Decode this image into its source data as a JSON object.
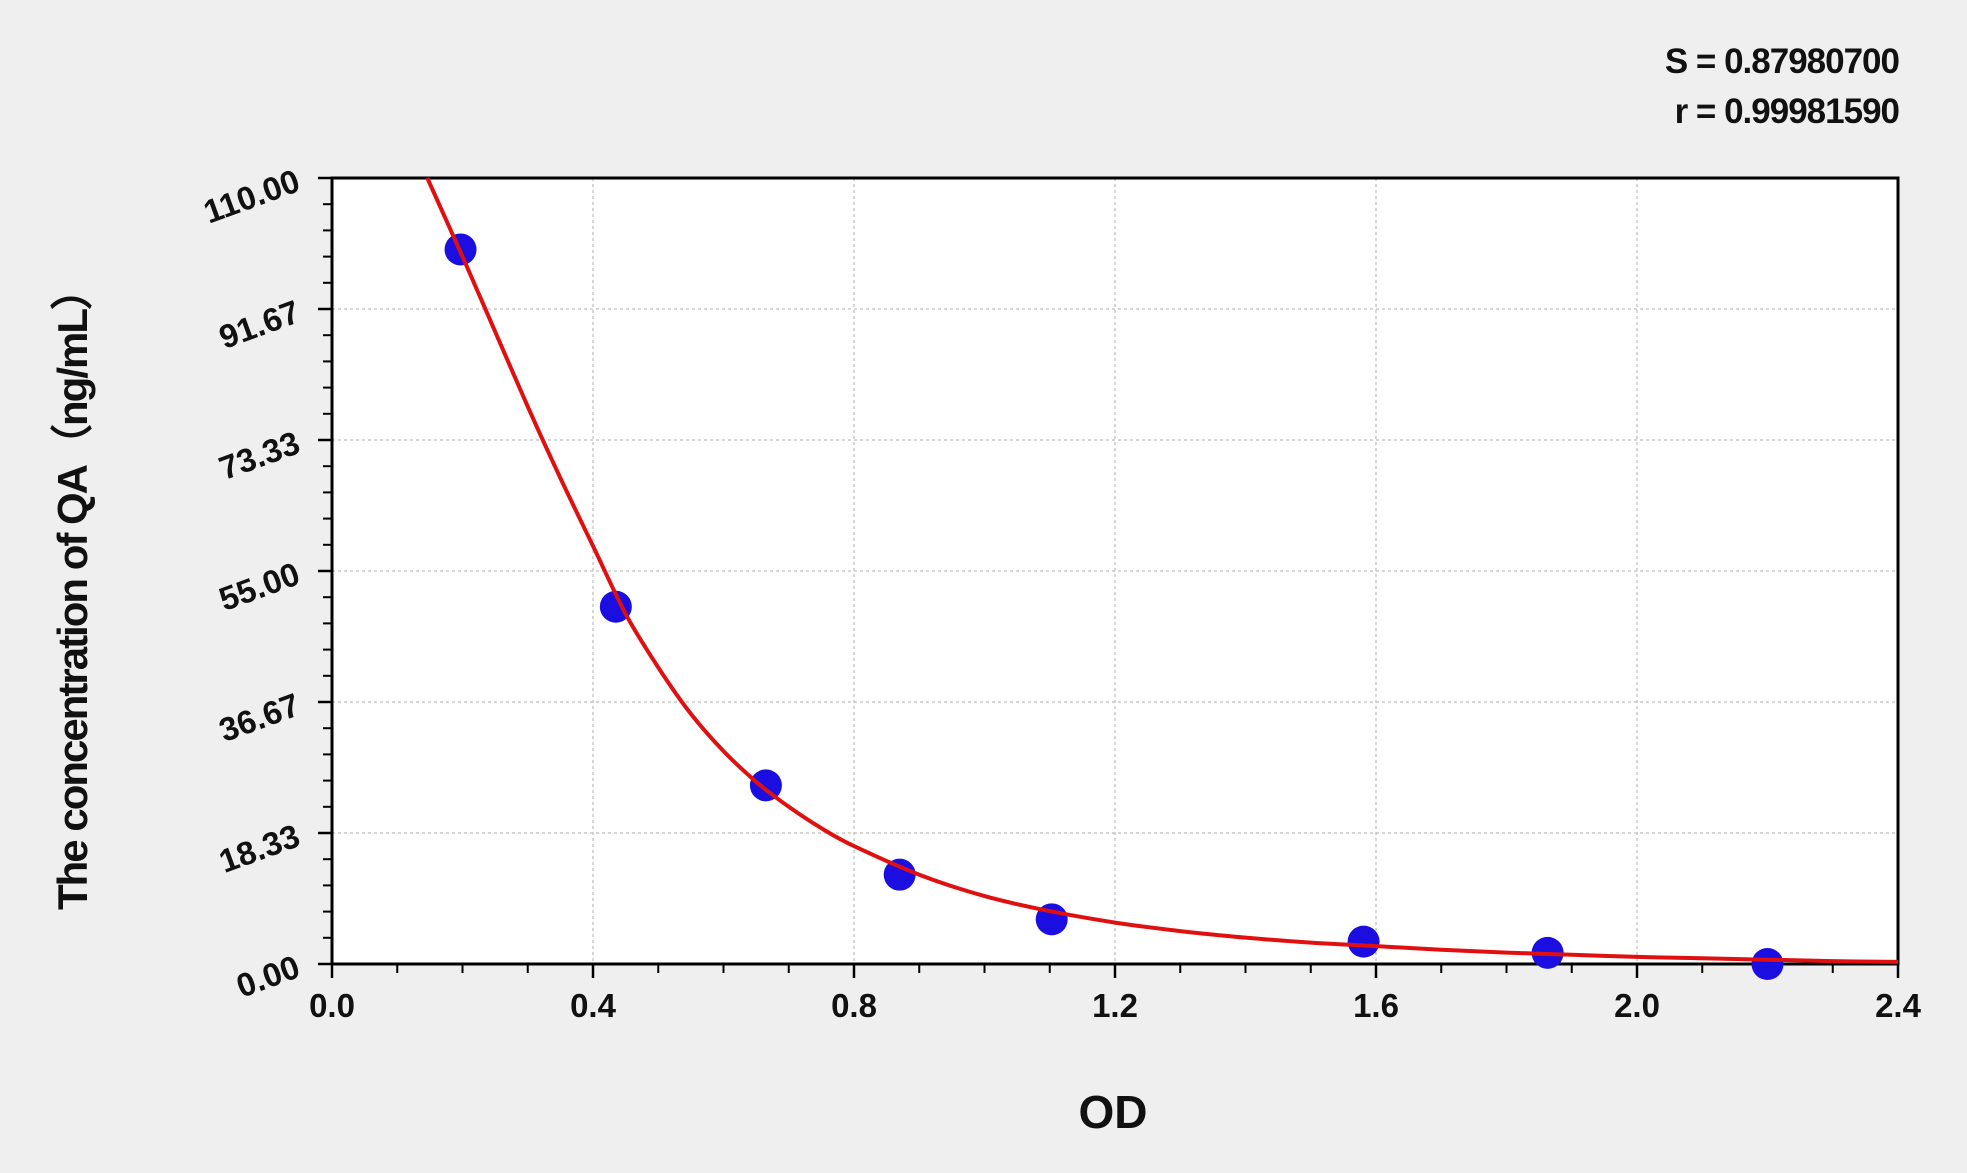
{
  "stats": {
    "s_text": "S = 0.87980700",
    "r_text": "r = 0.99981590"
  },
  "chart_data": {
    "type": "scatter",
    "title": "",
    "xlabel": "OD",
    "ylabel": "The concentration of QA（ng/mL）",
    "xlim": [
      0.0,
      2.4
    ],
    "ylim": [
      0.0,
      110.0
    ],
    "x_ticks": [
      "0.0",
      "0.4",
      "0.8",
      "1.2",
      "1.6",
      "2.0",
      "2.4"
    ],
    "y_ticks": [
      "0.00",
      "18.33",
      "36.67",
      "55.00",
      "73.33",
      "91.67",
      "110.00"
    ],
    "grid": true,
    "series": [
      {
        "color": "#1a0fe0",
        "x": [
          0.197,
          0.435,
          0.665,
          0.87,
          1.103,
          1.581,
          1.863,
          2.2
        ],
        "y": [
          100.0,
          50.0,
          25.0,
          12.5,
          6.25,
          3.13,
          1.56,
          0.0
        ]
      }
    ],
    "fit_curve": {
      "color": "#e01010",
      "x": [
        0.146,
        0.2,
        0.25,
        0.3,
        0.35,
        0.4,
        0.45,
        0.5,
        0.55,
        0.6,
        0.65,
        0.7,
        0.75,
        0.8,
        0.9,
        1.0,
        1.1,
        1.2,
        1.3,
        1.4,
        1.5,
        1.6,
        1.7,
        1.8,
        1.9,
        2.0,
        2.1,
        2.2,
        2.3,
        2.4
      ],
      "y": [
        110.0,
        99.0,
        88.5,
        78.0,
        68.0,
        58.5,
        49.0,
        41.5,
        35.0,
        29.8,
        25.5,
        22.0,
        19.0,
        16.5,
        12.5,
        9.5,
        7.4,
        5.8,
        4.6,
        3.7,
        3.0,
        2.5,
        2.0,
        1.6,
        1.3,
        1.0,
        0.8,
        0.6,
        0.4,
        0.3
      ]
    }
  }
}
